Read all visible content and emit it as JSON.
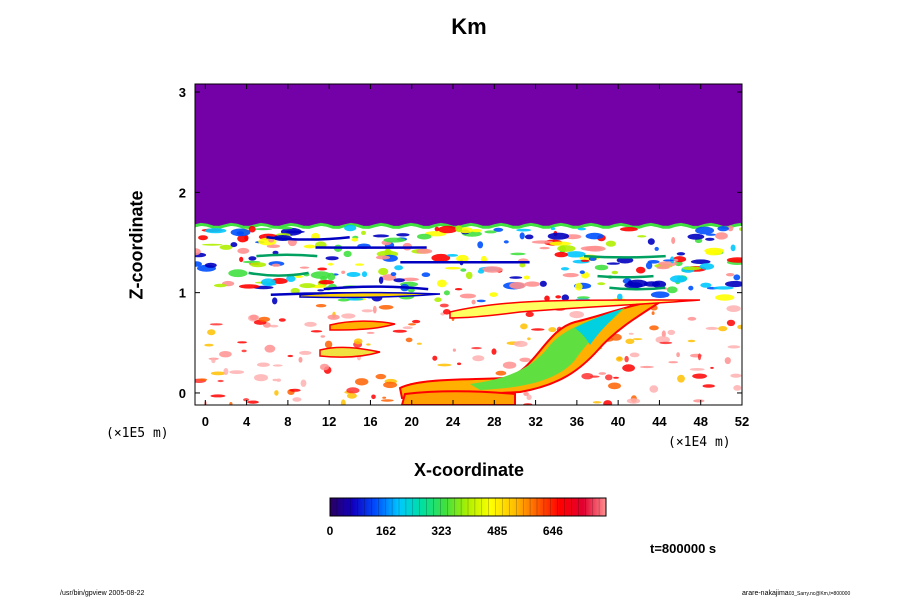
{
  "chart_data": {
    "type": "heatmap",
    "title": "Km",
    "xlabel": "X-coordinate",
    "ylabel": "Z-coordinate",
    "x_ticks": [
      "0",
      "4",
      "8",
      "12",
      "16",
      "20",
      "24",
      "28",
      "32",
      "36",
      "40",
      "44",
      "48",
      "52"
    ],
    "y_ticks": [
      "0",
      "1",
      "2",
      "3"
    ],
    "x_scale_note": "(×1E4 m)",
    "y_scale_note": "(×1E5 m)",
    "xlim": [
      -1,
      52
    ],
    "ylim": [
      -0.12,
      3.08
    ],
    "colorbar_ticks": [
      "0",
      "162",
      "323",
      "485",
      "646"
    ],
    "colorbar_range": [
      0,
      800
    ],
    "time_label": "t=800000 s",
    "colors": {
      "upper_layer": "#7400a8",
      "background": "#ffffff",
      "colormap": [
        "#2a0060",
        "#1000c0",
        "#0050ff",
        "#00c8ff",
        "#00e0a0",
        "#40e040",
        "#b0f000",
        "#ffff00",
        "#ffc000",
        "#ff6000",
        "#ff0000",
        "#e00030",
        "#ff9090"
      ]
    }
  },
  "footer": {
    "left": "/usr/bin/gpview 2005-08-22",
    "right": "arare-nakajima",
    "right_sub": "03_Sarry.nc@Km,t=800000"
  }
}
